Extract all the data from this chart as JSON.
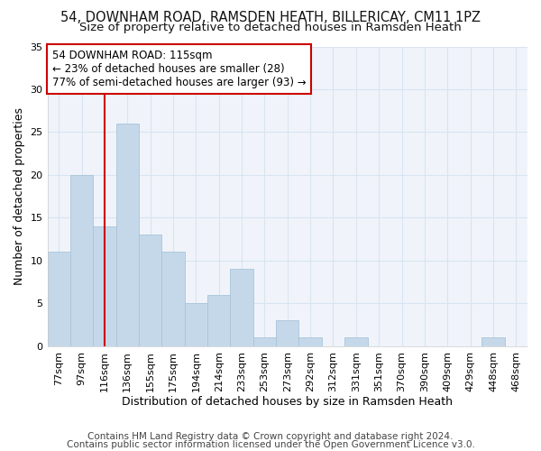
{
  "title1": "54, DOWNHAM ROAD, RAMSDEN HEATH, BILLERICAY, CM11 1PZ",
  "title2": "Size of property relative to detached houses in Ramsden Heath",
  "xlabel": "Distribution of detached houses by size in Ramsden Heath",
  "ylabel": "Number of detached properties",
  "categories": [
    "77sqm",
    "97sqm",
    "116sqm",
    "136sqm",
    "155sqm",
    "175sqm",
    "194sqm",
    "214sqm",
    "233sqm",
    "253sqm",
    "273sqm",
    "292sqm",
    "312sqm",
    "331sqm",
    "351sqm",
    "370sqm",
    "390sqm",
    "409sqm",
    "429sqm",
    "448sqm",
    "468sqm"
  ],
  "values": [
    11,
    20,
    14,
    26,
    13,
    11,
    5,
    6,
    9,
    1,
    3,
    1,
    0,
    1,
    0,
    0,
    0,
    0,
    0,
    1,
    0
  ],
  "bar_color": "#c5d8ea",
  "bar_edge_color": "#a8c4d8",
  "highlight_index": 2,
  "red_line_color": "#cc0000",
  "annotation_line1": "54 DOWNHAM ROAD: 115sqm",
  "annotation_line2": "← 23% of detached houses are smaller (28)",
  "annotation_line3": "77% of semi-detached houses are larger (93) →",
  "annotation_box_color": "#ffffff",
  "annotation_box_edge_color": "#cc0000",
  "ylim": [
    0,
    35
  ],
  "yticks": [
    0,
    5,
    10,
    15,
    20,
    25,
    30,
    35
  ],
  "footer1": "Contains HM Land Registry data © Crown copyright and database right 2024.",
  "footer2": "Contains public sector information licensed under the Open Government Licence v3.0.",
  "bg_color": "#ffffff",
  "plot_bg_color": "#f0f4fa",
  "grid_color": "#d8e4f0",
  "title_fontsize": 10.5,
  "subtitle_fontsize": 9.5,
  "axis_label_fontsize": 9,
  "tick_fontsize": 8,
  "annotation_fontsize": 8.5,
  "footer_fontsize": 7.5
}
